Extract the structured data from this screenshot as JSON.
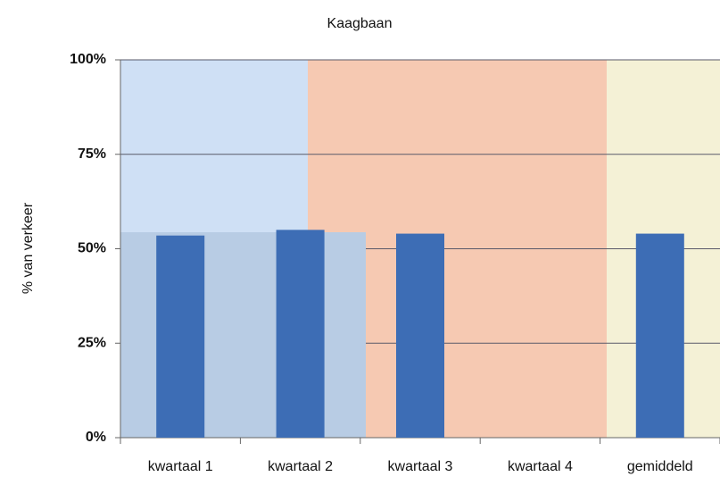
{
  "chart_data": {
    "type": "bar",
    "title": "Kaagbaan",
    "y_label": "% van verkeer",
    "categories": [
      "kwartaal 1",
      "kwartaal 2",
      "kwartaal 3",
      "kwartaal 4",
      "gemiddeld"
    ],
    "values": [
      53.5,
      55,
      54,
      null,
      54
    ],
    "color": "#3d6db5",
    "ylim": [
      0,
      100
    ],
    "yticks": [
      {
        "value": 0,
        "label": "0%"
      },
      {
        "value": 25,
        "label": "25%"
      },
      {
        "value": 50,
        "label": "50%"
      },
      {
        "value": 75,
        "label": "75%"
      },
      {
        "value": 100,
        "label": "100%"
      }
    ],
    "grid": true
  }
}
